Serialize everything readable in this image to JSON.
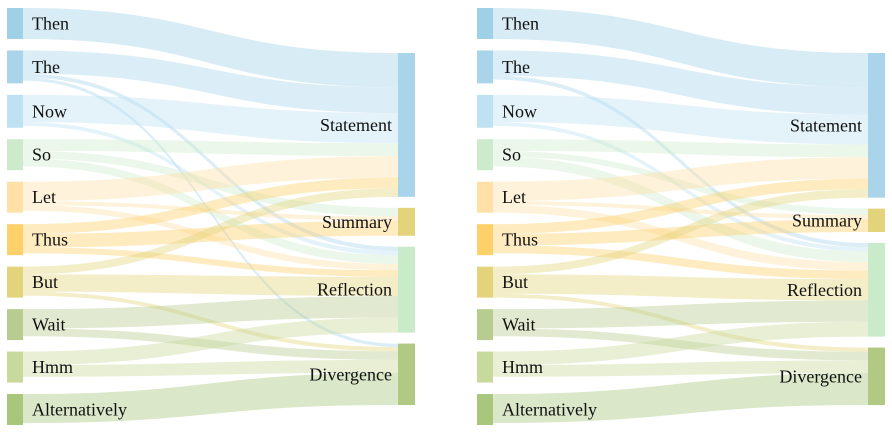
{
  "chart_data": [
    {
      "type": "sankey",
      "title": "",
      "sources": [
        {
          "name": "Then",
          "color": "#9fd1e6",
          "value": 0.8
        },
        {
          "name": "The",
          "color": "#a9d4ea",
          "value": 0.85
        },
        {
          "name": "Now",
          "color": "#bfe2f2",
          "value": 0.85
        },
        {
          "name": "So",
          "color": "#cdebcc",
          "value": 0.8
        },
        {
          "name": "Let",
          "color": "#ffe0a6",
          "value": 0.8
        },
        {
          "name": "Thus",
          "color": "#fdd06a",
          "value": 0.8
        },
        {
          "name": "But",
          "color": "#e3d37b",
          "value": 0.8
        },
        {
          "name": "Wait",
          "color": "#b8cc8f",
          "value": 0.8
        },
        {
          "name": "Hmm",
          "color": "#c8d99c",
          "value": 0.8
        },
        {
          "name": "Alternatively",
          "color": "#a8c67c",
          "value": 0.8
        }
      ],
      "targets": [
        {
          "name": "Statement",
          "color": "#a9d4ea"
        },
        {
          "name": "Summary",
          "color": "#e3d37b"
        },
        {
          "name": "Reflection",
          "color": "#c9ebc9"
        },
        {
          "name": "Divergence",
          "color": "#b2c983"
        }
      ],
      "flows": [
        {
          "source": "Then",
          "target": "Statement",
          "value": 0.8
        },
        {
          "source": "The",
          "target": "Statement",
          "value": 0.6
        },
        {
          "source": "The",
          "target": "Reflection",
          "value": 0.1
        },
        {
          "source": "The",
          "target": "Divergence",
          "value": 0.08
        },
        {
          "source": "Now",
          "target": "Statement",
          "value": 0.7
        },
        {
          "source": "Now",
          "target": "Reflection",
          "value": 0.1
        },
        {
          "source": "So",
          "target": "Statement",
          "value": 0.3
        },
        {
          "source": "So",
          "target": "Summary",
          "value": 0.2
        },
        {
          "source": "So",
          "target": "Reflection",
          "value": 0.2
        },
        {
          "source": "Let",
          "target": "Statement",
          "value": 0.5
        },
        {
          "source": "Let",
          "target": "Summary",
          "value": 0.1
        },
        {
          "source": "Let",
          "target": "Reflection",
          "value": 0.15
        },
        {
          "source": "Thus",
          "target": "Statement",
          "value": 0.25
        },
        {
          "source": "Thus",
          "target": "Summary",
          "value": 0.35
        },
        {
          "source": "Thus",
          "target": "Reflection",
          "value": 0.15
        },
        {
          "source": "But",
          "target": "Statement",
          "value": 0.2
        },
        {
          "source": "But",
          "target": "Reflection",
          "value": 0.45
        },
        {
          "source": "But",
          "target": "Divergence",
          "value": 0.1
        },
        {
          "source": "Wait",
          "target": "Reflection",
          "value": 0.5
        },
        {
          "source": "Wait",
          "target": "Divergence",
          "value": 0.2
        },
        {
          "source": "Hmm",
          "target": "Reflection",
          "value": 0.35
        },
        {
          "source": "Hmm",
          "target": "Divergence",
          "value": 0.3
        },
        {
          "source": "Alternatively",
          "target": "Divergence",
          "value": 0.75
        }
      ]
    },
    {
      "type": "sankey",
      "title": "",
      "sources": [
        {
          "name": "Then",
          "color": "#9fd1e6",
          "value": 0.8
        },
        {
          "name": "The",
          "color": "#a9d4ea",
          "value": 0.85
        },
        {
          "name": "Now",
          "color": "#bfe2f2",
          "value": 0.85
        },
        {
          "name": "So",
          "color": "#cdebcc",
          "value": 0.8
        },
        {
          "name": "Let",
          "color": "#ffe0a6",
          "value": 0.8
        },
        {
          "name": "Thus",
          "color": "#fdd06a",
          "value": 0.8
        },
        {
          "name": "But",
          "color": "#e3d37b",
          "value": 0.8
        },
        {
          "name": "Wait",
          "color": "#b8cc8f",
          "value": 0.8
        },
        {
          "name": "Hmm",
          "color": "#c8d99c",
          "value": 0.8
        },
        {
          "name": "Alternatively",
          "color": "#a8c67c",
          "value": 0.8
        }
      ],
      "targets": [
        {
          "name": "Statement",
          "color": "#a9d4ea"
        },
        {
          "name": "Summary",
          "color": "#e3d37b"
        },
        {
          "name": "Reflection",
          "color": "#c9ebc9"
        },
        {
          "name": "Divergence",
          "color": "#b2c983"
        }
      ],
      "flows": [
        {
          "source": "Then",
          "target": "Statement",
          "value": 0.8
        },
        {
          "source": "The",
          "target": "Statement",
          "value": 0.65
        },
        {
          "source": "The",
          "target": "Reflection",
          "value": 0.1
        },
        {
          "source": "Now",
          "target": "Statement",
          "value": 0.7
        },
        {
          "source": "Now",
          "target": "Reflection",
          "value": 0.1
        },
        {
          "source": "So",
          "target": "Statement",
          "value": 0.3
        },
        {
          "source": "So",
          "target": "Summary",
          "value": 0.15
        },
        {
          "source": "So",
          "target": "Reflection",
          "value": 0.25
        },
        {
          "source": "Let",
          "target": "Statement",
          "value": 0.5
        },
        {
          "source": "Let",
          "target": "Summary",
          "value": 0.1
        },
        {
          "source": "Let",
          "target": "Reflection",
          "value": 0.2
        },
        {
          "source": "Thus",
          "target": "Statement",
          "value": 0.25
        },
        {
          "source": "Thus",
          "target": "Summary",
          "value": 0.3
        },
        {
          "source": "Thus",
          "target": "Reflection",
          "value": 0.2
        },
        {
          "source": "But",
          "target": "Statement",
          "value": 0.2
        },
        {
          "source": "But",
          "target": "Reflection",
          "value": 0.5
        },
        {
          "source": "But",
          "target": "Divergence",
          "value": 0.1
        },
        {
          "source": "Wait",
          "target": "Reflection",
          "value": 0.5
        },
        {
          "source": "Wait",
          "target": "Divergence",
          "value": 0.2
        },
        {
          "source": "Hmm",
          "target": "Reflection",
          "value": 0.35
        },
        {
          "source": "Hmm",
          "target": "Divergence",
          "value": 0.3
        },
        {
          "source": "Alternatively",
          "target": "Divergence",
          "value": 0.75
        }
      ]
    }
  ]
}
